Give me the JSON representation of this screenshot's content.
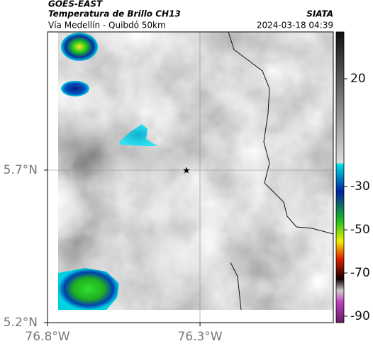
{
  "header": {
    "satellite": "GOES-EAST",
    "title": "Temperatura de Brillo CH13",
    "subtitle": "Vía Medellín - Quibdó 50km",
    "agency": "SIATA",
    "datetime": "2024-03-18 04:39"
  },
  "map": {
    "lon_range": [
      -76.8,
      -75.863
    ],
    "lat_range": [
      5.2,
      6.153
    ],
    "xticks": [
      {
        "value": -76.8,
        "label": "76.8°W"
      },
      {
        "value": -76.3,
        "label": "76.3°W"
      }
    ],
    "yticks": [
      {
        "value": 5.7,
        "label": "5.7°N"
      },
      {
        "value": 5.2,
        "label": "5.2°N"
      }
    ]
  },
  "colorbar": {
    "range": [
      41.7,
      -93
    ],
    "ticks": [
      20,
      -30,
      -50,
      -70,
      -90
    ]
  }
}
